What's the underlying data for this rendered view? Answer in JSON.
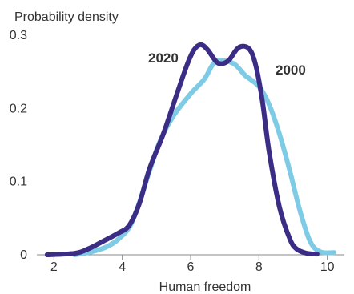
{
  "chart_data": {
    "type": "line",
    "ylabel": "Probability density",
    "xlabel": "Human freedom",
    "xlim": [
      1.5,
      10.5
    ],
    "ylim": [
      0,
      0.3
    ],
    "xticks": [
      2,
      4,
      6,
      8,
      10
    ],
    "xtick_labels": [
      "2",
      "4",
      "6",
      "8",
      "10"
    ],
    "yticks": [
      0,
      0.1,
      0.2,
      0.3
    ],
    "ytick_labels": [
      "0",
      "0.1",
      "0.2",
      "0.3"
    ],
    "grid": false,
    "legend": "direct labels on lines",
    "series": [
      {
        "name": "2000",
        "color": "#7ecbe5",
        "x": [
          2.6,
          3.0,
          3.5,
          3.9,
          4.3,
          4.8,
          5.1,
          5.5,
          6.0,
          6.4,
          6.7,
          7.0,
          7.3,
          7.6,
          8.0,
          8.3,
          8.6,
          8.9,
          9.2,
          9.5,
          9.8,
          10.2
        ],
        "y": [
          0.0,
          0.003,
          0.01,
          0.022,
          0.046,
          0.115,
          0.155,
          0.19,
          0.22,
          0.24,
          0.263,
          0.265,
          0.26,
          0.245,
          0.23,
          0.205,
          0.165,
          0.115,
          0.06,
          0.018,
          0.004,
          0.003
        ]
      },
      {
        "name": "2020",
        "color": "#3b2d85",
        "x": [
          1.8,
          2.6,
          3.0,
          3.5,
          3.9,
          4.2,
          4.5,
          4.8,
          5.2,
          5.6,
          5.9,
          6.1,
          6.3,
          6.5,
          6.8,
          7.1,
          7.4,
          7.7,
          7.9,
          8.1,
          8.3,
          8.6,
          8.9,
          9.1,
          9.4,
          9.7
        ],
        "y": [
          0.0,
          0.002,
          0.008,
          0.02,
          0.03,
          0.04,
          0.07,
          0.118,
          0.165,
          0.22,
          0.26,
          0.28,
          0.287,
          0.28,
          0.262,
          0.265,
          0.283,
          0.282,
          0.26,
          0.21,
          0.14,
          0.065,
          0.022,
          0.008,
          0.002,
          0.001
        ]
      }
    ],
    "annotations": [
      "2020",
      "2000"
    ]
  }
}
